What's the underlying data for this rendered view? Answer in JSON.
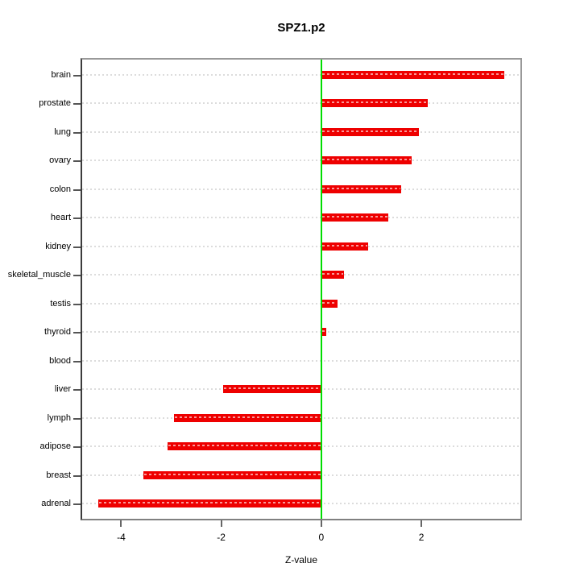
{
  "title": "SPZ1.p2",
  "x_axis_label": "Z-value",
  "colors": {
    "bar": "#ee0000",
    "zero_line": "#00dd00",
    "box_border": "#999999",
    "grid": "#dcdcdc",
    "text": "#000000"
  },
  "chart_data": {
    "type": "bar",
    "orientation": "horizontal",
    "title": "SPZ1.p2",
    "xlabel": "Z-value",
    "ylabel": "",
    "categories": [
      "brain",
      "prostate",
      "lung",
      "ovary",
      "colon",
      "heart",
      "kidney",
      "skeletal_muscle",
      "testis",
      "thyroid",
      "blood",
      "liver",
      "lymph",
      "adipose",
      "breast",
      "adrenal"
    ],
    "values": [
      3.66,
      2.13,
      1.95,
      1.8,
      1.59,
      1.34,
      0.94,
      0.45,
      0.32,
      0.1,
      0.0,
      -1.97,
      -2.94,
      -3.08,
      -3.55,
      -4.46
    ],
    "xlim": [
      -4.78,
      3.98
    ],
    "xticks": [
      -4,
      -2,
      0,
      2
    ],
    "zero_reference_line": 0,
    "grid": true,
    "legend": "none",
    "bar_color": "#ee0000",
    "zero_line_color": "#00dd00"
  }
}
